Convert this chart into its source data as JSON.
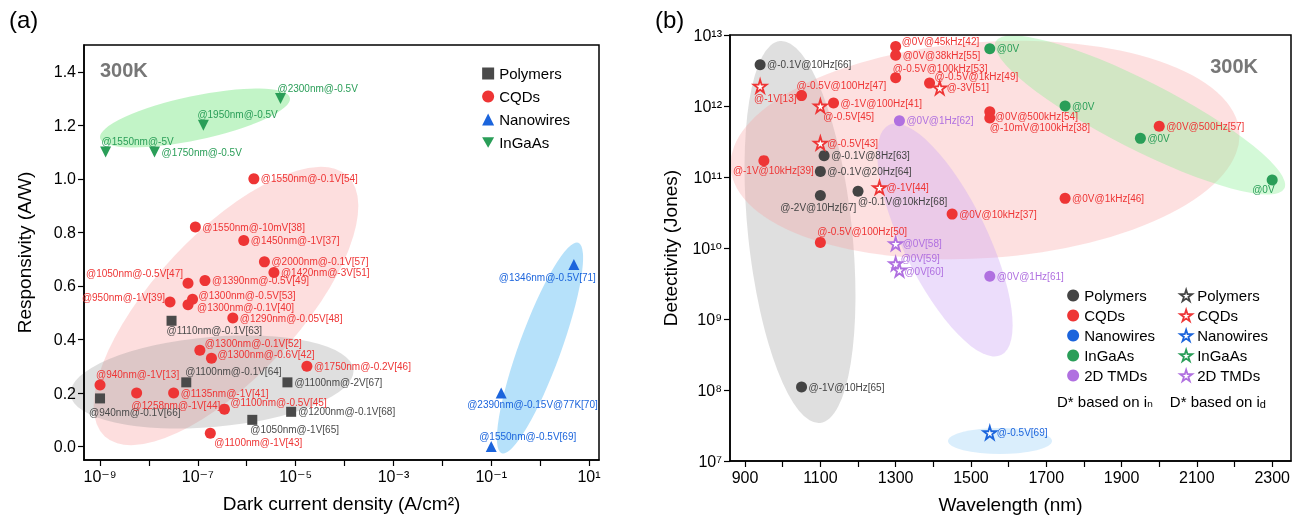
{
  "chart_data": [
    {
      "type": "scatter",
      "title": "(a)",
      "xlabel": "Dark current density (A/cm²)",
      "ylabel": "Responsivity (A/W)",
      "annotations": [
        "300K"
      ],
      "log": "x",
      "legend": "top right",
      "xlim": [
        4.7e-10,
        16
      ],
      "ylim": [
        -0.05,
        1.5
      ],
      "xticks": [
        {
          "value": 1e-09,
          "label": "10⁻⁹"
        },
        {
          "value": 1e-08,
          "label": null
        },
        {
          "value": 1e-07,
          "label": "10⁻⁷"
        },
        {
          "value": 1e-06,
          "label": null
        },
        {
          "value": 1e-05,
          "label": "10⁻⁵"
        },
        {
          "value": 0.0001,
          "label": null
        },
        {
          "value": 0.001,
          "label": "10⁻³"
        },
        {
          "value": 0.01,
          "label": null
        },
        {
          "value": 0.1,
          "label": "10⁻¹"
        },
        {
          "value": 1,
          "label": null
        },
        {
          "value": 10,
          "label": "10¹"
        }
      ],
      "yticks": [
        {
          "value": 0,
          "label": "0.0"
        },
        0.2,
        0.4,
        0.6,
        0.8,
        {
          "value": 1,
          "label": "1.0"
        },
        1.2,
        1.4
      ],
      "series": [
        {
          "name": "Polymers",
          "color": "#4a4a4a",
          "marker": "square",
          "x": [
            2.9e-08,
            5.8e-08,
            1e-09,
            1.3e-06,
            6.8e-06,
            8.1e-06
          ],
          "values": [
            0.47,
            0.24,
            0.18,
            0.1,
            0.24,
            0.13
          ],
          "value_labels": [
            "@1110nm@-0.1V[63]",
            "@1100nm@-0.1V[64]",
            "@940nm@-0.1V[66]",
            "@1050nm@-1V[65]",
            "@1100nm@-2V[67]",
            "@1200nm@-0.1V[68]"
          ]
        },
        {
          "name": "CQDs",
          "color": "#ee3535",
          "marker": "circle",
          "x": [
            1.4e-06,
            8.9e-08,
            8.7e-07,
            2.3e-06,
            3.6e-06,
            1.4e-07,
            6.3e-08,
            7.8e-08,
            6.3e-08,
            2.7e-08,
            5.2e-07,
            1.1e-07,
            1.9e-07,
            1.7e-05,
            1e-09,
            5.6e-09,
            3.2e-08,
            3.5e-07,
            1.8e-07
          ],
          "values": [
            1.0,
            0.82,
            0.77,
            0.69,
            0.65,
            0.62,
            0.61,
            0.55,
            0.53,
            0.54,
            0.48,
            0.36,
            0.33,
            0.3,
            0.23,
            0.2,
            0.2,
            0.14,
            0.05
          ],
          "value_labels": [
            "@1550nm@-0.1V[54]",
            "@1550nm@-10mV[38]",
            "@1450nm@-1V[37]",
            "@2000nm@-0.1V[57]",
            "@1420nm@-3V[51]",
            "@1390nm@-0.5V[49]",
            "@1050nm@-0.5V[47]",
            "@1300nm@-0.5V[53]",
            "@1300nm@-0.1V[40]",
            "@950nm@-1V[39]",
            "@1290nm@-0.05V[48]",
            "@1300nm@-0.1V[52]",
            "@1300nm@-0.6V[42]",
            "@1750nm@-0.2V[46]",
            "@940nm@-1V[13]",
            "@1258nm@-1V[44]",
            "@1135nm@-1V[41]",
            "@1100nm@-0.5V[45]",
            "@1100nm@-1V[43]"
          ]
        },
        {
          "name": "Nanowires",
          "color": "#1b64dc",
          "marker": "triangle",
          "x": [
            4.9,
            0.16,
            0.1
          ],
          "values": [
            0.68,
            0.2,
            0.0
          ],
          "value_labels": [
            "@1346nm@-0.5V[71]",
            "@2390nm@-0.15V@77K[70]",
            "@1550nm@-0.5V[69]"
          ]
        },
        {
          "name": "InGaAs",
          "color": "#2a9e58",
          "marker": "triangle-down",
          "x": [
            1.3e-09,
            1.3e-08,
            1.3e-07,
            4.9e-06
          ],
          "values": [
            1.1,
            1.1,
            1.2,
            1.3
          ],
          "value_labels": [
            "@1550nm@-5V",
            "@1750nm@-0.5V",
            "@1950nm@-0.5V",
            "@2300nm@-0.5V"
          ]
        }
      ]
    },
    {
      "type": "scatter",
      "title": "(b)",
      "xlabel": "Wavelength (nm)",
      "ylabel": "Detectivity (Jones)",
      "log": "y",
      "legend": "bottom right",
      "annotations": [
        "300K",
        "D* based on iₙ",
        "D* based on i$_{d}$",
        {
          "text": "@0V",
          "x": 1550,
          "y": 6400000000000.0
        },
        {
          "text": "@0V",
          "x": 1750,
          "y": 1000000000000.0
        },
        {
          "text": "@0V",
          "x": 1950,
          "y": 350000000000.0
        },
        {
          "text": "@0V",
          "x": 2300,
          "y": 91000000000.0
        }
      ],
      "xlim": [
        860,
        2350
      ],
      "ylim": [
        10000000.0,
        10000000000000.0
      ],
      "xticks": [
        900,
        {
          "value": 1000,
          "label": null
        },
        1100,
        {
          "value": 1200,
          "label": null
        },
        1300,
        {
          "value": 1400,
          "label": null
        },
        1500,
        {
          "value": 1600,
          "label": null
        },
        1700,
        {
          "value": 1800,
          "label": null
        },
        1900,
        {
          "value": 2000,
          "label": null
        },
        2100,
        {
          "value": 2200,
          "label": null
        },
        2300
      ],
      "yticks": [
        {
          "value": 10000000.0,
          "label": "10⁷"
        },
        {
          "value": 100000000.0,
          "label": "10⁸"
        },
        {
          "value": 1000000000.0,
          "label": "10⁹"
        },
        {
          "value": 10000000000.0,
          "label": "10¹⁰"
        },
        {
          "value": 100000000000.0,
          "label": "10¹¹"
        },
        {
          "value": 1000000000000.0,
          "label": "10¹²"
        },
        {
          "value": 10000000000000.0,
          "label": "10¹³"
        }
      ],
      "series": [
        {
          "name": "Polymers",
          "color": "#444444",
          "marker": "circle",
          "x": [
            940,
            1110,
            1100,
            1100,
            1200,
            1050
          ],
          "values": [
            3800000000000.0,
            200000000000.0,
            120000000000.0,
            55000000000.0,
            63000000000.0,
            110000000.0
          ],
          "value_labels": [
            "@-0.1V@10Hz[66]",
            "@-0.1V@8Hz[63]",
            "@-0.1V@20Hz[64]",
            "@-2V@10Hz[67]",
            "@-0.1V@10kHz[68]",
            "@-1V@10Hz[65]"
          ]
        },
        {
          "name": "CQDs",
          "color": "#ee3535",
          "marker": "circle",
          "x": [
            1300,
            1300,
            1300,
            1390,
            1050,
            1135,
            950,
            1100,
            1450,
            1550,
            1550,
            2000,
            1750
          ],
          "values": [
            6900000000000.0,
            5200000000000.0,
            2500000000000.0,
            2100000000000.0,
            1400000000000.0,
            1100000000000.0,
            170000000000.0,
            12000000000.0,
            30000000000.0,
            830000000000.0,
            680000000000.0,
            520000000000.0,
            50000000000.0
          ],
          "value_labels": [
            "@0V@45kHz[42]",
            "@0V@38kHz[55]",
            "@-0.5V@100kHz[53]",
            "@-0.5V@1kHz[49]",
            "@-0.5V@100Hz[47]",
            "@-1V@100Hz[41]",
            "@-1V@10kHz[39]",
            "@-0.5V@100Hz[50]",
            "@0V@10kHz[37]",
            "@0V@500kHz[54]",
            "@-10mV@100kHz[38]",
            "@0V@500Hz[57]",
            "@0V@1kHz[46]"
          ]
        },
        {
          "name": "Nanowires",
          "color": "#1b64dc",
          "marker": "circle"
        },
        {
          "name": "InGaAs",
          "color": "#2a9e58",
          "marker": "circle",
          "x": [
            1550,
            1750,
            1950,
            2300
          ],
          "values": [
            6400000000000.0,
            1000000000000.0,
            350000000000.0,
            91000000000.0
          ]
        },
        {
          "name": "2D TMDs",
          "color": "#b070e0",
          "marker": "circle",
          "x": [
            1310,
            1550
          ],
          "values": [
            620000000000.0,
            4000000000.0
          ],
          "value_labels": [
            "@0V@1Hz[62]",
            "@0V@1Hz[61]"
          ]
        },
        {
          "name": "Polymers",
          "color": "#444444",
          "marker": "star"
        },
        {
          "name": "CQDs",
          "color": "#ee3535",
          "marker": "star",
          "x": [
            940,
            1100,
            1417,
            1100,
            1257
          ],
          "values": [
            1900000000000.0,
            1000000000000.0,
            1800000000000.0,
            300000000000.0,
            71000000000.0
          ],
          "value_labels": [
            "@-1V[13]",
            "@-0.5V[45]",
            "@-3V[51]",
            "@-0.5V[43]",
            "@-1V[44]"
          ]
        },
        {
          "name": "Nanowires",
          "color": "#1b64dc",
          "marker": "star",
          "x": [
            1550
          ],
          "values": [
            25000000.0
          ],
          "value_labels": [
            "@-0.5V[69]"
          ]
        },
        {
          "name": "InGaAs",
          "color": "#2a9e58",
          "marker": "star"
        },
        {
          "name": "2D TMDs",
          "color": "#b070e0",
          "marker": "star",
          "x": [
            1300,
            1300,
            1310
          ],
          "values": [
            11500000000.0,
            6000000000.0,
            4900000000.0
          ],
          "value_labels": [
            "@0V[58]",
            "@0V[59]",
            "@0V[60]"
          ]
        }
      ]
    }
  ]
}
